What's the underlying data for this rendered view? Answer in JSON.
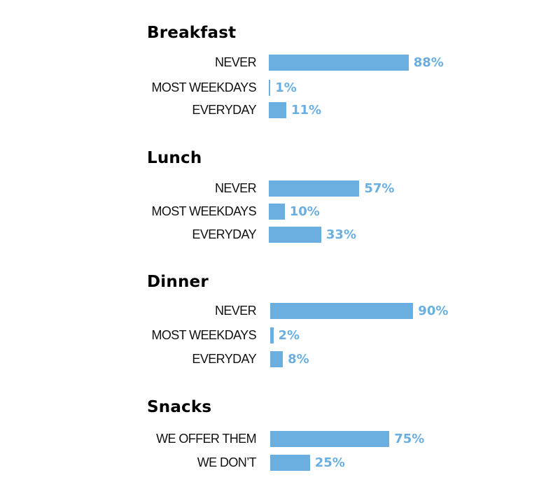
{
  "colors": {
    "bar": "#6aafe0",
    "value_text": "#6aafe0"
  },
  "chart_data": {
    "type": "bar",
    "orientation": "horizontal",
    "groups": [
      {
        "title": "Breakfast",
        "categories": [
          "NEVER",
          "MOST WEEKDAYS",
          "EVERYDAY"
        ],
        "values": [
          88,
          1,
          11
        ],
        "labels": [
          "88%",
          "1%",
          "11%"
        ]
      },
      {
        "title": "Lunch",
        "categories": [
          "NEVER",
          "MOST WEEKDAYS",
          "EVERYDAY"
        ],
        "values": [
          57,
          10,
          33
        ],
        "labels": [
          "57%",
          "10%",
          "33%"
        ]
      },
      {
        "title": "Dinner",
        "categories": [
          "NEVER",
          "MOST WEEKDAYS",
          "EVERYDAY"
        ],
        "values": [
          90,
          2,
          8
        ],
        "labels": [
          "90%",
          "2%",
          "8%"
        ]
      },
      {
        "title": "Snacks",
        "categories": [
          "WE OFFER THEM",
          "WE DON’T"
        ],
        "values": [
          75,
          25
        ],
        "labels": [
          "75%",
          "25%"
        ]
      }
    ],
    "xlim": [
      0,
      100
    ],
    "grid": false,
    "legend": "none"
  }
}
